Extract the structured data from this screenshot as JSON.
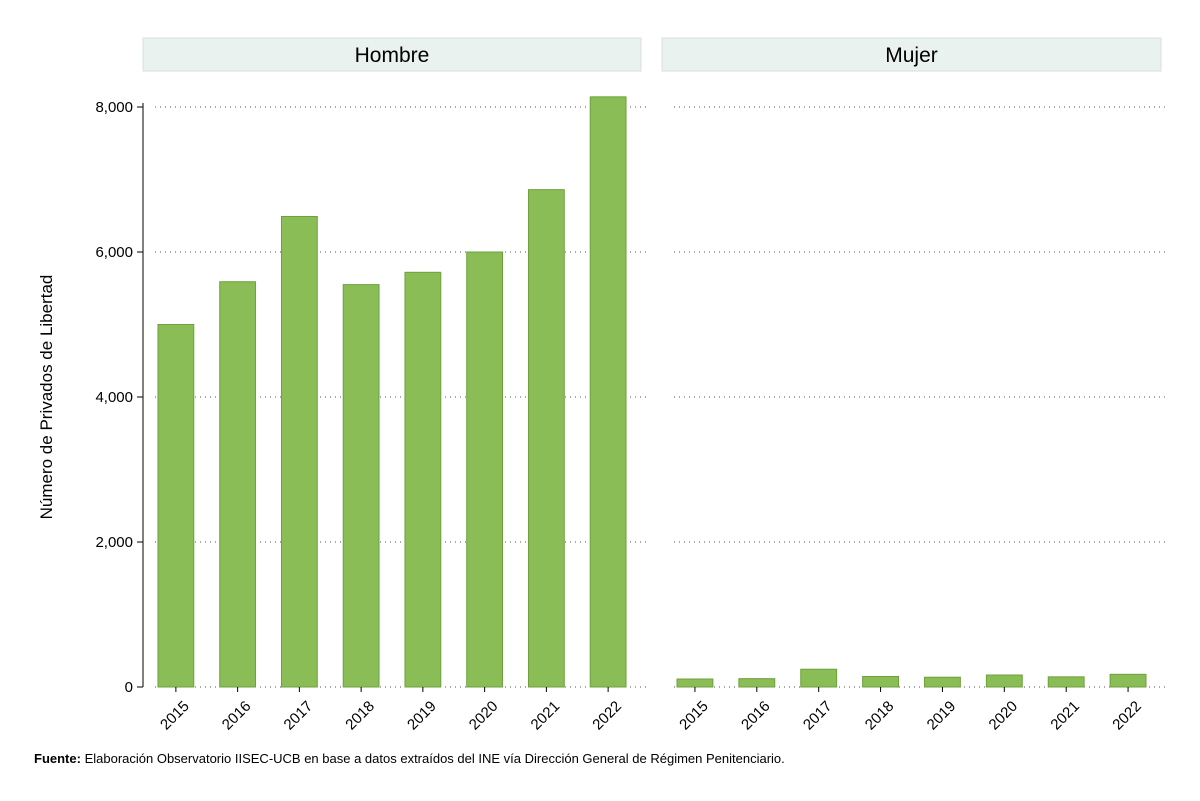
{
  "chart_data": {
    "type": "bar",
    "ylabel": "Número de Privados de Libertad",
    "ylim": [
      0,
      8000
    ],
    "yticks": [
      0,
      2000,
      4000,
      6000,
      8000
    ],
    "ytick_labels": [
      "0",
      "2,000",
      "4,000",
      "6,000",
      "8,000"
    ],
    "grid": true,
    "bar_color": "#8abd56",
    "bar_edge_color": "#6fa03c",
    "header_color": "#eaf2ef",
    "panels": [
      {
        "title": "Hombre",
        "categories": [
          "2015",
          "2016",
          "2017",
          "2018",
          "2019",
          "2020",
          "2021",
          "2022"
        ],
        "values": [
          5000,
          5590,
          6490,
          5550,
          5720,
          6000,
          6860,
          8140
        ]
      },
      {
        "title": "Mujer",
        "categories": [
          "2015",
          "2016",
          "2017",
          "2018",
          "2019",
          "2020",
          "2021",
          "2022"
        ],
        "values": [
          110,
          115,
          245,
          145,
          135,
          165,
          140,
          175
        ]
      }
    ]
  },
  "source": {
    "label": "Fuente:",
    "text": " Elaboración Observatorio IISEC-UCB en base a datos  extraídos del INE vía Dirección General de Régimen Penitenciario."
  }
}
